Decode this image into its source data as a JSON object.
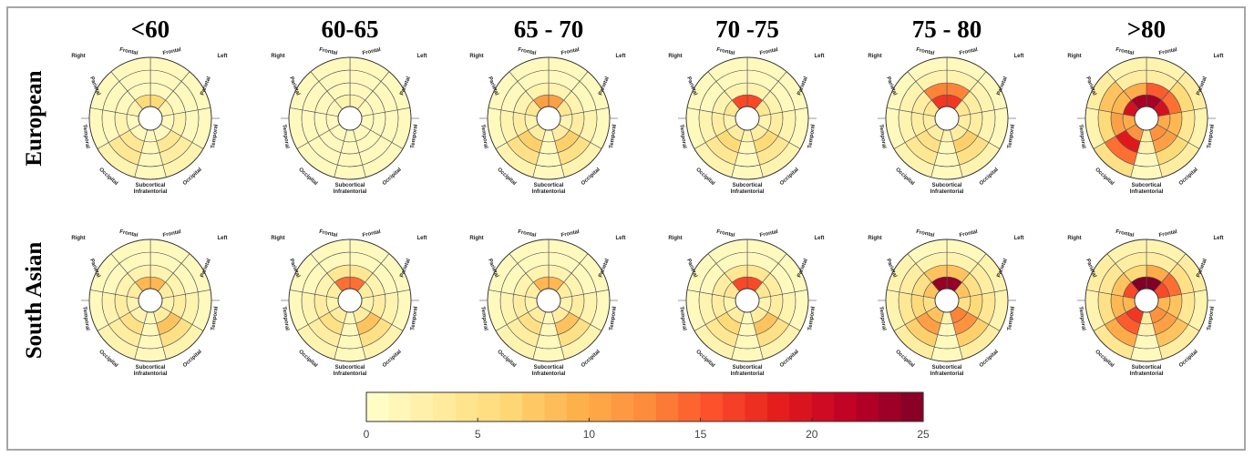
{
  "chart_data": {
    "type": "heatmap",
    "subtype": "bullseye-polar",
    "columns": [
      "<60",
      "60-65",
      "65 - 70",
      "70 -75",
      "75 - 80",
      ">80"
    ],
    "rows": [
      "European",
      "South Asian"
    ],
    "lobe_labels": [
      "Right",
      "Frontal",
      "Frontal",
      "Left",
      "Parietal",
      "Parietal",
      "Temporal",
      "Temporal",
      "Occipital",
      "Occipital",
      "Subcortical",
      "Infratentorial"
    ],
    "sectors": [
      "Frontal-L",
      "Parietal-L",
      "Temporal-L",
      "Occipital-L",
      "Infratentorial",
      "Occipital-R",
      "Temporal-R",
      "Parietal-R",
      "Frontal-R"
    ],
    "rings": [
      "inner",
      "ring2",
      "ring3",
      "outer"
    ],
    "panels": [
      {
        "row": "European",
        "column": "<60",
        "values": [
          [
            6,
            2,
            1,
            1,
            1,
            1,
            1,
            2,
            6
          ],
          [
            1,
            1,
            2,
            4,
            1,
            4,
            2,
            1,
            1
          ],
          [
            1,
            1,
            1,
            3,
            1,
            4,
            1,
            1,
            1
          ],
          [
            1,
            1,
            1,
            2,
            1,
            2,
            1,
            1,
            1
          ]
        ]
      },
      {
        "row": "European",
        "column": "60-65",
        "values": [
          [
            2,
            1,
            1,
            1,
            1,
            1,
            1,
            1,
            2
          ],
          [
            1,
            1,
            1,
            1,
            1,
            1,
            1,
            1,
            1
          ],
          [
            1,
            1,
            1,
            1,
            1,
            1,
            1,
            1,
            1
          ],
          [
            1,
            1,
            1,
            1,
            1,
            1,
            1,
            1,
            1
          ]
        ]
      },
      {
        "row": "European",
        "column": "65 - 70",
        "values": [
          [
            11,
            4,
            2,
            3,
            1,
            3,
            2,
            4,
            11
          ],
          [
            2,
            2,
            3,
            7,
            1,
            7,
            3,
            2,
            2
          ],
          [
            1,
            1,
            2,
            5,
            1,
            5,
            2,
            1,
            1
          ],
          [
            1,
            1,
            1,
            2,
            1,
            2,
            1,
            1,
            1
          ]
        ]
      },
      {
        "row": "European",
        "column": "70 -75",
        "values": [
          [
            16,
            4,
            2,
            3,
            2,
            3,
            2,
            4,
            16
          ],
          [
            2,
            2,
            3,
            6,
            1,
            6,
            3,
            2,
            2
          ],
          [
            1,
            1,
            2,
            4,
            1,
            4,
            2,
            1,
            1
          ],
          [
            1,
            1,
            1,
            2,
            1,
            2,
            1,
            1,
            1
          ]
        ]
      },
      {
        "row": "European",
        "column": "75 - 80",
        "values": [
          [
            17,
            4,
            3,
            3,
            2,
            3,
            3,
            4,
            17
          ],
          [
            13,
            3,
            3,
            7,
            1,
            5,
            3,
            3,
            13
          ],
          [
            2,
            2,
            2,
            5,
            1,
            4,
            2,
            2,
            2
          ],
          [
            1,
            1,
            1,
            2,
            1,
            2,
            1,
            1,
            1
          ]
        ]
      },
      {
        "row": "European",
        "column": ">80",
        "values": [
          [
            23,
            20,
            10,
            12,
            3,
            12,
            10,
            20,
            23
          ],
          [
            15,
            14,
            9,
            11,
            2,
            19,
            11,
            9,
            10
          ],
          [
            3,
            6,
            4,
            6,
            1,
            14,
            6,
            8,
            3
          ],
          [
            2,
            3,
            2,
            3,
            1,
            5,
            2,
            3,
            2
          ]
        ]
      },
      {
        "row": "South Asian",
        "column": "<60",
        "values": [
          [
            9,
            3,
            2,
            3,
            1,
            2,
            2,
            3,
            9
          ],
          [
            2,
            2,
            3,
            8,
            1,
            5,
            3,
            2,
            2
          ],
          [
            1,
            1,
            2,
            5,
            1,
            3,
            2,
            1,
            1
          ],
          [
            1,
            1,
            1,
            2,
            1,
            2,
            1,
            1,
            1
          ]
        ]
      },
      {
        "row": "South Asian",
        "column": "60-65",
        "values": [
          [
            14,
            3,
            2,
            3,
            1,
            3,
            2,
            3,
            14
          ],
          [
            4,
            2,
            3,
            8,
            1,
            5,
            3,
            2,
            4
          ],
          [
            1,
            1,
            2,
            5,
            1,
            3,
            2,
            1,
            1
          ],
          [
            1,
            1,
            1,
            2,
            1,
            2,
            1,
            1,
            1
          ]
        ]
      },
      {
        "row": "South Asian",
        "column": "65 - 70",
        "values": [
          [
            9,
            3,
            2,
            3,
            1,
            3,
            2,
            3,
            9
          ],
          [
            2,
            2,
            3,
            8,
            1,
            5,
            3,
            2,
            2
          ],
          [
            1,
            1,
            2,
            5,
            1,
            3,
            2,
            1,
            1
          ],
          [
            1,
            1,
            1,
            2,
            1,
            2,
            1,
            1,
            1
          ]
        ]
      },
      {
        "row": "South Asian",
        "column": "70 -75",
        "values": [
          [
            16,
            4,
            2,
            3,
            1,
            3,
            2,
            4,
            16
          ],
          [
            4,
            3,
            3,
            8,
            1,
            6,
            3,
            3,
            4
          ],
          [
            1,
            1,
            2,
            5,
            1,
            4,
            2,
            1,
            1
          ],
          [
            1,
            1,
            1,
            2,
            1,
            2,
            1,
            1,
            1
          ]
        ]
      },
      {
        "row": "South Asian",
        "column": "75 - 80",
        "values": [
          [
            24,
            8,
            5,
            13,
            2,
            8,
            5,
            8,
            24
          ],
          [
            8,
            5,
            6,
            12,
            1,
            11,
            6,
            5,
            8
          ],
          [
            2,
            3,
            4,
            7,
            1,
            7,
            4,
            3,
            2
          ],
          [
            1,
            2,
            2,
            3,
            1,
            3,
            2,
            2,
            1
          ]
        ]
      },
      {
        "row": "South Asian",
        "column": ">80",
        "values": [
          [
            25,
            16,
            9,
            12,
            3,
            17,
            9,
            16,
            25
          ],
          [
            10,
            14,
            8,
            11,
            2,
            15,
            9,
            8,
            6
          ],
          [
            3,
            5,
            4,
            8,
            1,
            10,
            5,
            4,
            3
          ],
          [
            2,
            3,
            2,
            3,
            1,
            4,
            2,
            3,
            2
          ]
        ]
      }
    ],
    "colorbar": {
      "min": 0,
      "max": 25,
      "ticks": [
        "0",
        "5",
        "10",
        "15",
        "20",
        "25"
      ],
      "stops": [
        "#ffffcc",
        "#ffeda0",
        "#fed976",
        "#feb24c",
        "#fd8d3c",
        "#fc4e2a",
        "#e31a1c",
        "#bd0026",
        "#800026"
      ],
      "steps": 25
    },
    "grid_color": "#555555"
  }
}
